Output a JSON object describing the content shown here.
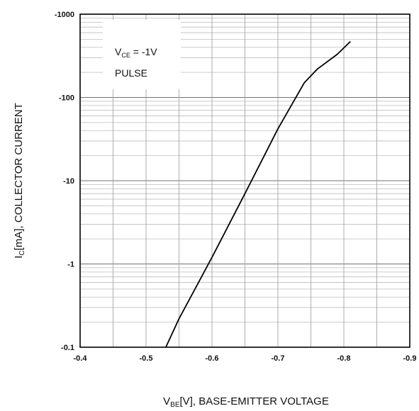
{
  "chart_data": {
    "type": "line",
    "x_scale": "linear",
    "y_scale": "log",
    "x_reversed": true,
    "xlim": [
      -0.4,
      -0.9
    ],
    "ylim": [
      -0.1,
      -1000
    ],
    "x_ticks": [
      "-0.4",
      "-0.5",
      "-0.6",
      "-0.7",
      "-0.8",
      "-0.9"
    ],
    "y_ticks": [
      "-0.1",
      "-1",
      "-10",
      "-100",
      "-1000"
    ],
    "xlabel": {
      "main": "V",
      "sub": "BE",
      "rest": "[V], BASE-EMITTER VOLTAGE"
    },
    "ylabel": {
      "main": "I",
      "sub": "C",
      "rest": "[mA], COLLECTOR CURRENT"
    },
    "annotation": {
      "line1_main": "V",
      "line1_sub": "CE",
      "line1_rest": " = -1V",
      "line2": "PULSE"
    },
    "grid": true,
    "series": [
      {
        "x": [
          -0.53,
          -0.55,
          -0.6,
          -0.65,
          -0.7,
          -0.74,
          -0.76,
          -0.79,
          -0.81
        ],
        "y": [
          -0.1,
          -0.22,
          -1.2,
          -7,
          -42,
          -150,
          -220,
          -330,
          -470
        ]
      }
    ]
  }
}
